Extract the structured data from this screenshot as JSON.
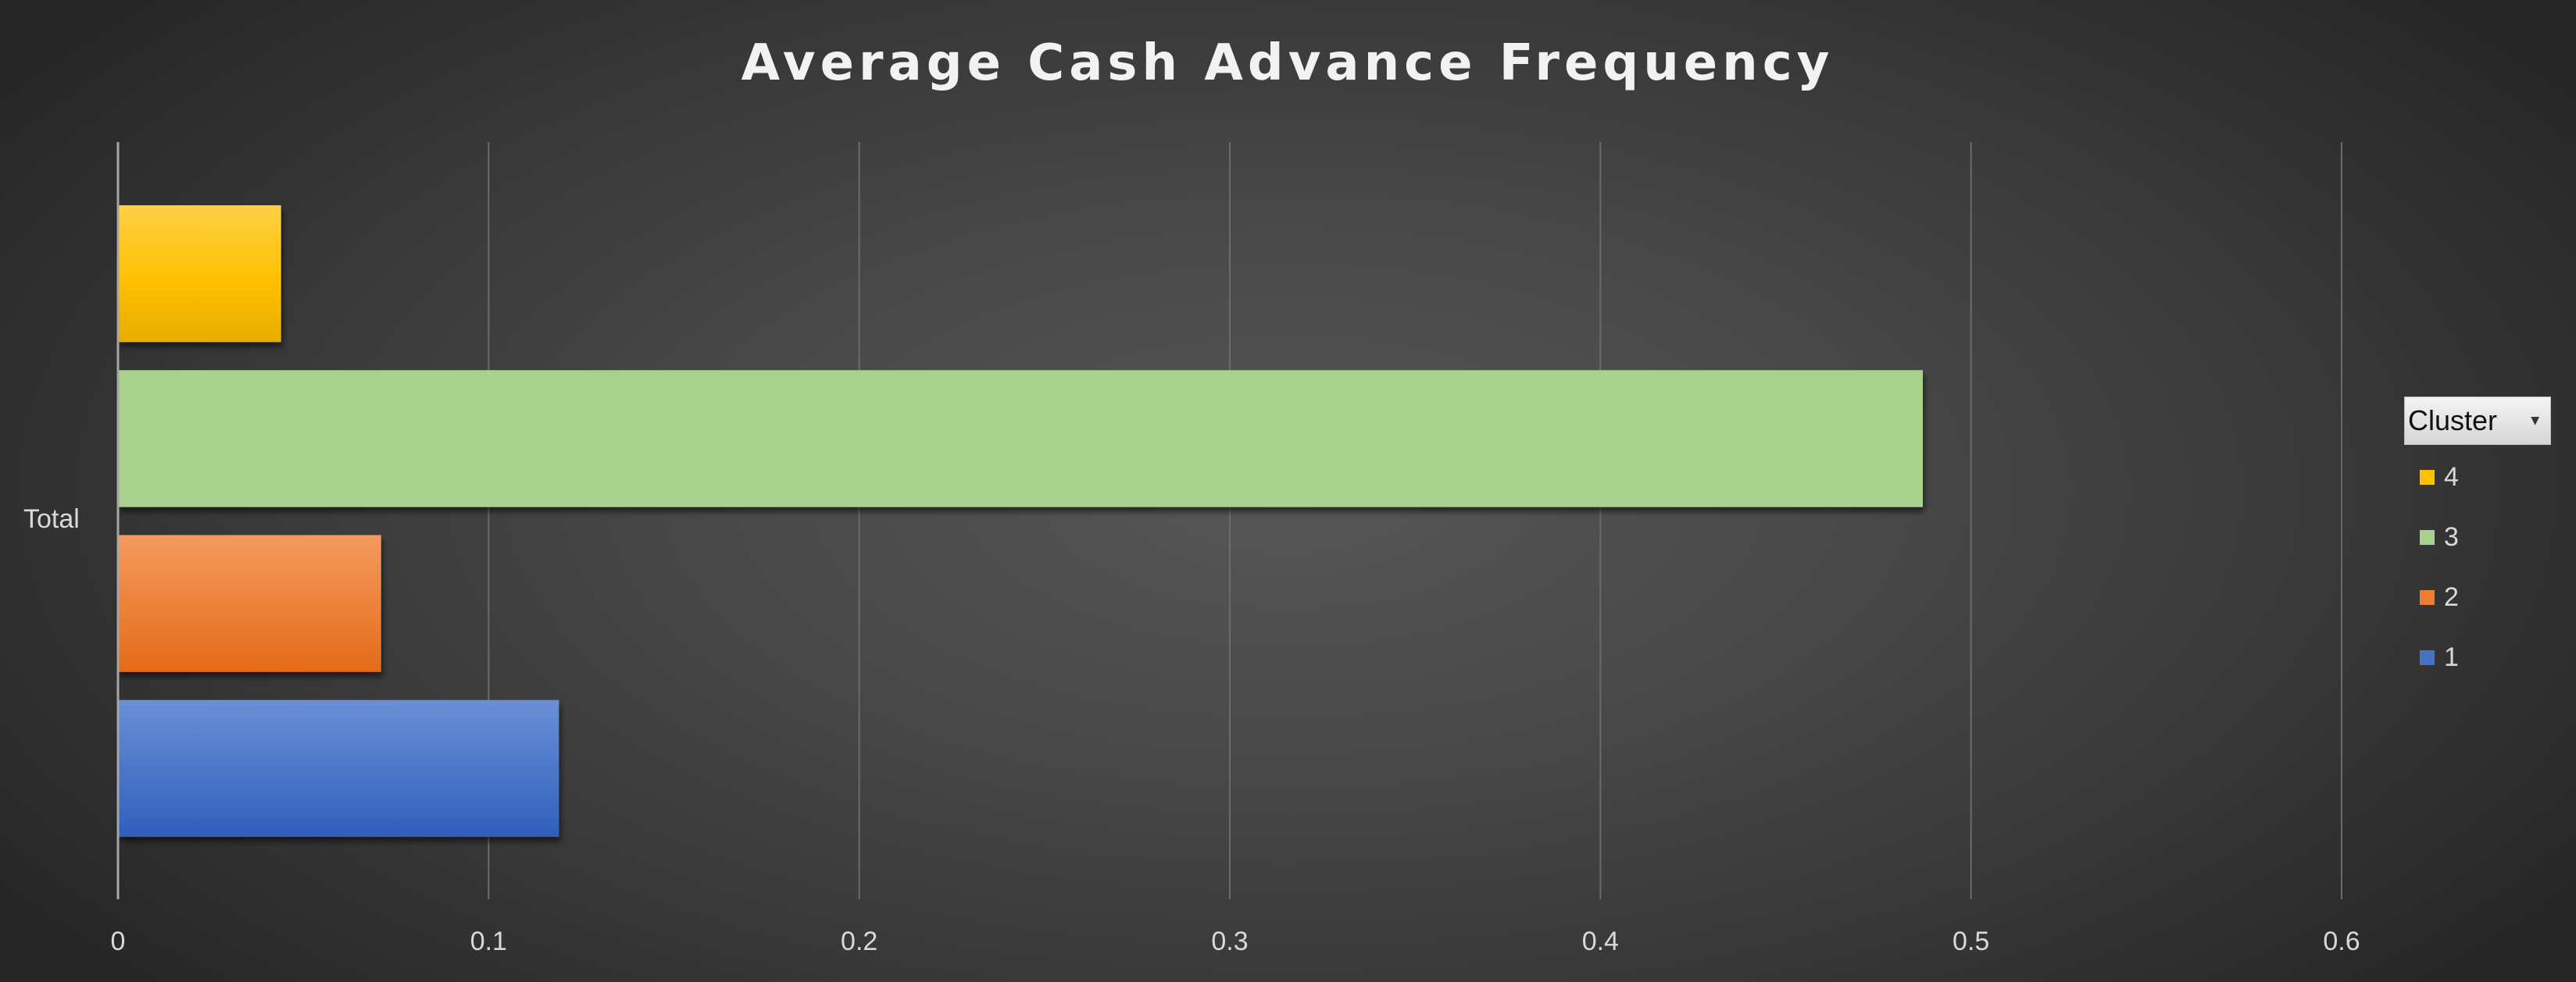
{
  "chart_data": {
    "type": "bar",
    "orientation": "horizontal",
    "title": "Average Cash Advance Frequency",
    "categories": [
      "Total"
    ],
    "series": [
      {
        "name": "1",
        "values": [
          0.119
        ],
        "color": "#4472c4"
      },
      {
        "name": "2",
        "values": [
          0.071
        ],
        "color": "#ed7d31"
      },
      {
        "name": "3",
        "values": [
          0.487
        ],
        "color": "#a9d18e"
      },
      {
        "name": "4",
        "values": [
          0.044
        ],
        "color": "#ffc000"
      }
    ],
    "x_ticks": [
      "0",
      "0.1",
      "0.2",
      "0.3",
      "0.4",
      "0.5",
      "0.6"
    ],
    "xlim": [
      0,
      0.6
    ],
    "xlabel": "",
    "ylabel": "",
    "grid": "vertical",
    "legend": {
      "title": "Cluster",
      "placement": "right",
      "order": [
        "4",
        "3",
        "2",
        "1"
      ]
    }
  }
}
